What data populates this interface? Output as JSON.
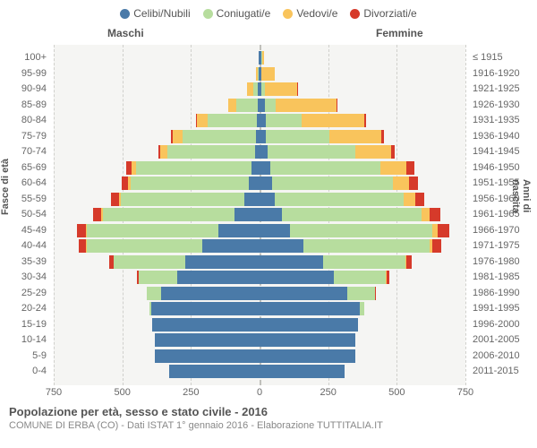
{
  "chart": {
    "type": "population-pyramid",
    "title": "Popolazione per età, sesso e stato civile - 2016",
    "subtitle": "COMUNE DI ERBA (CO) - Dati ISTAT 1° gennaio 2016 - Elaborazione TUTTITALIA.IT",
    "background_color": "#f5f5f3",
    "grid_color": "#d0d0cc",
    "legend": [
      {
        "label": "Celibi/Nubili",
        "color": "#4a7aa8"
      },
      {
        "label": "Coniugati/e",
        "color": "#b7dd9e"
      },
      {
        "label": "Vedovi/e",
        "color": "#f9c45c"
      },
      {
        "label": "Divorziati/e",
        "color": "#d63a2a"
      }
    ],
    "gender_labels": {
      "male": "Maschi",
      "female": "Femmine"
    },
    "yaxis_left_title": "Fasce di età",
    "yaxis_right_title": "Anni di nascita",
    "xaxis": {
      "max": 750,
      "ticks": [
        750,
        500,
        250,
        0,
        250,
        500,
        750
      ]
    },
    "age_bands": [
      "100+",
      "95-99",
      "90-94",
      "85-89",
      "80-84",
      "75-79",
      "70-74",
      "65-69",
      "60-64",
      "55-59",
      "50-54",
      "45-49",
      "40-44",
      "35-39",
      "30-34",
      "25-29",
      "20-24",
      "15-19",
      "10-14",
      "5-9",
      "0-4"
    ],
    "birth_years": [
      "≤ 1915",
      "1916-1920",
      "1921-1925",
      "1926-1930",
      "1931-1935",
      "1936-1940",
      "1941-1945",
      "1946-1950",
      "1951-1955",
      "1956-1960",
      "1961-1965",
      "1966-1970",
      "1971-1975",
      "1976-1980",
      "1981-1985",
      "1986-1990",
      "1991-1995",
      "1996-2000",
      "2001-2005",
      "2006-2010",
      "2011-2015"
    ],
    "data": [
      {
        "m": [
          2,
          0,
          0,
          0
        ],
        "f": [
          8,
          1,
          7,
          0
        ]
      },
      {
        "m": [
          3,
          2,
          8,
          0
        ],
        "f": [
          5,
          2,
          48,
          0
        ]
      },
      {
        "m": [
          5,
          18,
          24,
          0
        ],
        "f": [
          8,
          10,
          120,
          2
        ]
      },
      {
        "m": [
          6,
          78,
          30,
          0
        ],
        "f": [
          18,
          42,
          220,
          4
        ]
      },
      {
        "m": [
          10,
          180,
          38,
          3
        ],
        "f": [
          22,
          130,
          230,
          6
        ]
      },
      {
        "m": [
          12,
          270,
          35,
          5
        ],
        "f": [
          24,
          230,
          190,
          10
        ]
      },
      {
        "m": [
          16,
          320,
          26,
          8
        ],
        "f": [
          28,
          320,
          130,
          14
        ]
      },
      {
        "m": [
          30,
          420,
          18,
          18
        ],
        "f": [
          40,
          400,
          95,
          28
        ]
      },
      {
        "m": [
          40,
          430,
          10,
          22
        ],
        "f": [
          46,
          440,
          60,
          30
        ]
      },
      {
        "m": [
          55,
          450,
          8,
          28
        ],
        "f": [
          56,
          470,
          40,
          34
        ]
      },
      {
        "m": [
          90,
          480,
          6,
          32
        ],
        "f": [
          80,
          510,
          28,
          40
        ]
      },
      {
        "m": [
          150,
          480,
          4,
          30
        ],
        "f": [
          110,
          520,
          18,
          42
        ]
      },
      {
        "m": [
          210,
          420,
          2,
          26
        ],
        "f": [
          160,
          460,
          10,
          32
        ]
      },
      {
        "m": [
          270,
          260,
          0,
          18
        ],
        "f": [
          230,
          300,
          4,
          22
        ]
      },
      {
        "m": [
          300,
          140,
          0,
          8
        ],
        "f": [
          270,
          190,
          2,
          12
        ]
      },
      {
        "m": [
          360,
          50,
          0,
          2
        ],
        "f": [
          320,
          100,
          0,
          5
        ]
      },
      {
        "m": [
          395,
          6,
          0,
          0
        ],
        "f": [
          365,
          18,
          0,
          0
        ]
      },
      {
        "m": [
          390,
          0,
          0,
          0
        ],
        "f": [
          360,
          0,
          0,
          0
        ]
      },
      {
        "m": [
          380,
          0,
          0,
          0
        ],
        "f": [
          350,
          0,
          0,
          0
        ]
      },
      {
        "m": [
          380,
          0,
          0,
          0
        ],
        "f": [
          350,
          0,
          0,
          0
        ]
      },
      {
        "m": [
          330,
          0,
          0,
          0
        ],
        "f": [
          310,
          0,
          0,
          0
        ]
      }
    ]
  }
}
